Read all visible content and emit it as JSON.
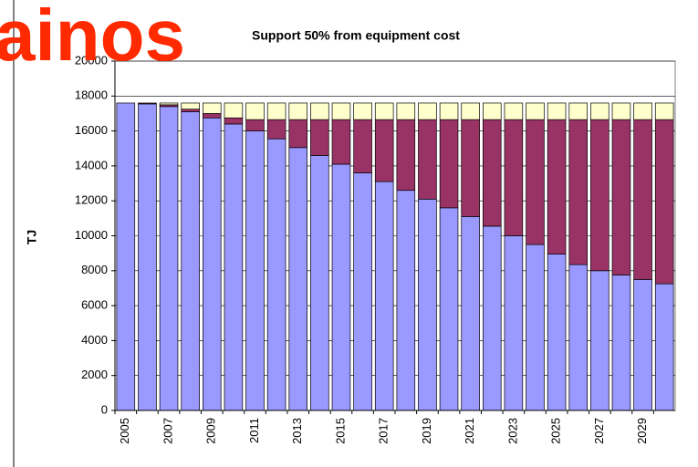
{
  "chart_data": {
    "type": "stacked_bar",
    "title": "Support 50% from equipment cost",
    "annotation": "ainos",
    "y_label": "TJ",
    "categories": [
      "2005",
      null,
      "2007",
      null,
      "2009",
      null,
      "2011",
      null,
      "2013",
      null,
      "2015",
      null,
      "2017",
      null,
      "2019",
      null,
      "2021",
      null,
      "2023",
      null,
      "2025",
      null,
      "2027",
      null,
      "2029",
      null
    ],
    "series": [
      {
        "color": "#9999ff",
        "values": [
          17600,
          17550,
          17400,
          17100,
          16750,
          16400,
          16000,
          15550,
          15050,
          14600,
          14100,
          13600,
          13100,
          12600,
          12100,
          11600,
          11100,
          10550,
          10000,
          9500,
          8950,
          8350,
          8000,
          7750,
          7500,
          7250
        ]
      },
      {
        "color": "#993366",
        "values": [
          0,
          50,
          100,
          150,
          250,
          350,
          650,
          1100,
          1600,
          2050,
          2550,
          3050,
          3550,
          4050,
          4550,
          5050,
          5550,
          6100,
          6650,
          7150,
          7700,
          8300,
          8650,
          8900,
          9150,
          9400
        ]
      },
      {
        "color": "#ffffcc",
        "values": [
          0,
          0,
          100,
          350,
          600,
          850,
          950,
          950,
          950,
          950,
          950,
          950,
          950,
          950,
          950,
          950,
          950,
          950,
          950,
          950,
          950,
          950,
          950,
          950,
          950,
          950
        ]
      }
    ],
    "ylim": [
      0,
      20000
    ],
    "yticks": [
      0,
      2000,
      4000,
      6000,
      8000,
      10000,
      12000,
      14000,
      16000,
      18000,
      20000
    ],
    "grid": true
  }
}
